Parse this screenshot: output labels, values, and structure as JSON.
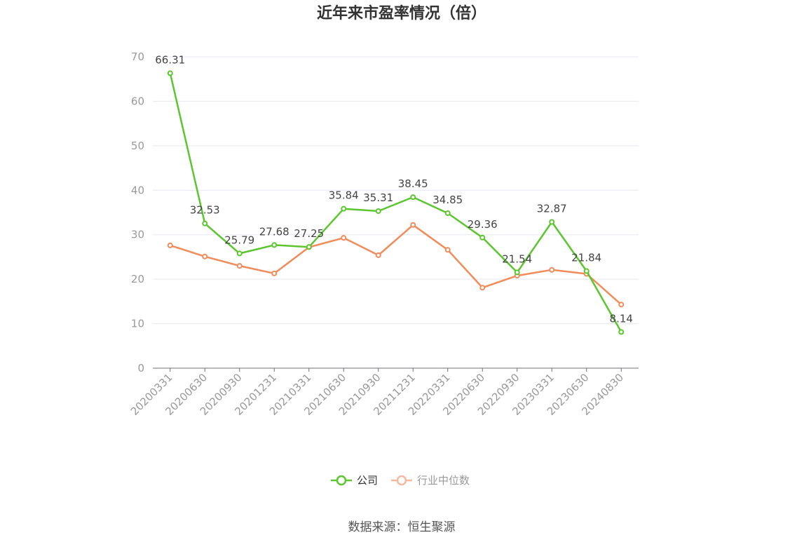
{
  "chart_data": {
    "type": "line",
    "title": "近年来市盈率情况（倍）",
    "categories": [
      "20200331",
      "20200630",
      "20200930",
      "20201231",
      "20210331",
      "20210630",
      "20210930",
      "20211231",
      "20220331",
      "20220630",
      "20220930",
      "20230331",
      "20230630",
      "20240830"
    ],
    "series": [
      {
        "name": "公司",
        "color": "#5cc62e",
        "values": [
          66.31,
          32.53,
          25.79,
          27.68,
          27.25,
          35.84,
          35.31,
          38.45,
          34.85,
          29.36,
          21.54,
          32.87,
          21.84,
          8.14
        ],
        "labels": [
          "66.31",
          "32.53",
          "25.79",
          "27.68",
          "27.25",
          "35.84",
          "35.31",
          "38.45",
          "34.85",
          "29.36",
          "21.54",
          "32.87",
          "21.84",
          "8.14"
        ]
      },
      {
        "name": "行业中位数",
        "color": "#f28b5a",
        "legend_color": "#f5b9a0",
        "values": [
          27.6,
          25.1,
          23.0,
          21.3,
          27.2,
          29.3,
          25.4,
          32.2,
          26.6,
          18.1,
          20.8,
          22.1,
          21.2,
          14.3
        ]
      }
    ],
    "ylim": [
      0,
      70
    ],
    "yticks": [
      "0",
      "10",
      "20",
      "30",
      "40",
      "50",
      "60",
      "70"
    ],
    "grid": true,
    "legend_position": "bottom"
  },
  "source_text": "数据来源：恒生聚源"
}
